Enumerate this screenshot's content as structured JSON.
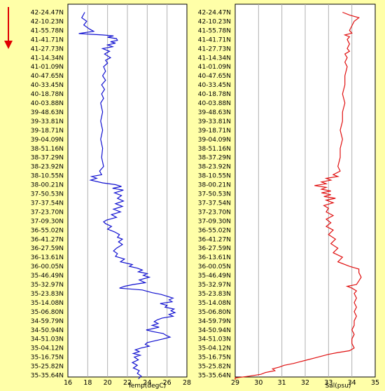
{
  "chart_data": [
    {
      "type": "line",
      "xlabel": "Temp(degC)",
      "xticks": [
        16,
        18,
        20,
        22,
        24,
        26,
        28
      ],
      "xlim": [
        16,
        28
      ],
      "latitudes": [
        "42-24.47N",
        "42-10.23N",
        "41-55.78N",
        "41-41.71N",
        "41-27.73N",
        "41-14.34N",
        "41-01.09N",
        "40-47.65N",
        "40-33.45N",
        "40-18.78N",
        "40-03.88N",
        "39-48.63N",
        "39-33.81N",
        "39-18.71N",
        "39-04.09N",
        "38-51.16N",
        "38-37.29N",
        "38-23.92N",
        "38-10.55N",
        "38-00.21N",
        "37-50.53N",
        "37-37.54N",
        "37-23.70N",
        "37-09.30N",
        "36-55.02N",
        "36-41.27N",
        "36-27.59N",
        "36-13.61N",
        "36-00.05N",
        "35-46.49N",
        "35-32.97N",
        "35-23.83N",
        "35-14.08N",
        "35-06.80N",
        "34-59.79N",
        "34-50.94N",
        "34-51.03N",
        "35-04.12N",
        "35-16.75N",
        "35-25.82N",
        "35-35.64N"
      ],
      "profile": [
        {
          "i": 0,
          "v": 17.7
        },
        {
          "i": 0.6,
          "v": 17.4
        },
        {
          "i": 1.0,
          "v": 17.9
        },
        {
          "i": 1.4,
          "v": 17.6
        },
        {
          "i": 1.8,
          "v": 18.1
        },
        {
          "i": 2.1,
          "v": 18.6
        },
        {
          "i": 2.35,
          "v": 17.1
        },
        {
          "i": 2.5,
          "v": 19.5
        },
        {
          "i": 2.6,
          "v": 20.6
        },
        {
          "i": 2.75,
          "v": 20.0
        },
        {
          "i": 2.9,
          "v": 20.9
        },
        {
          "i": 3.1,
          "v": 21.0
        },
        {
          "i": 3.25,
          "v": 20.3
        },
        {
          "i": 3.4,
          "v": 20.8
        },
        {
          "i": 3.6,
          "v": 20.0
        },
        {
          "i": 3.8,
          "v": 20.5
        },
        {
          "i": 4.0,
          "v": 19.5
        },
        {
          "i": 4.3,
          "v": 20.2
        },
        {
          "i": 4.6,
          "v": 19.7
        },
        {
          "i": 5.0,
          "v": 20.3
        },
        {
          "i": 5.3,
          "v": 19.8
        },
        {
          "i": 5.6,
          "v": 20.0
        },
        {
          "i": 6.0,
          "v": 19.6
        },
        {
          "i": 6.5,
          "v": 19.8
        },
        {
          "i": 7.0,
          "v": 19.5
        },
        {
          "i": 7.5,
          "v": 19.8
        },
        {
          "i": 8.0,
          "v": 19.4
        },
        {
          "i": 8.5,
          "v": 19.7
        },
        {
          "i": 9.0,
          "v": 19.4
        },
        {
          "i": 9.5,
          "v": 19.6
        },
        {
          "i": 10.0,
          "v": 19.3
        },
        {
          "i": 11.0,
          "v": 19.5
        },
        {
          "i": 12.0,
          "v": 19.3
        },
        {
          "i": 13.0,
          "v": 19.5
        },
        {
          "i": 14.0,
          "v": 19.3
        },
        {
          "i": 15.0,
          "v": 19.5
        },
        {
          "i": 16.0,
          "v": 19.4
        },
        {
          "i": 17.0,
          "v": 19.6
        },
        {
          "i": 17.5,
          "v": 19.2
        },
        {
          "i": 17.9,
          "v": 19.4
        },
        {
          "i": 18.1,
          "v": 18.4
        },
        {
          "i": 18.3,
          "v": 18.9
        },
        {
          "i": 18.5,
          "v": 18.3
        },
        {
          "i": 18.8,
          "v": 19.5
        },
        {
          "i": 19.0,
          "v": 20.8
        },
        {
          "i": 19.2,
          "v": 21.4
        },
        {
          "i": 19.4,
          "v": 20.5
        },
        {
          "i": 19.6,
          "v": 21.6
        },
        {
          "i": 19.9,
          "v": 20.7
        },
        {
          "i": 20.2,
          "v": 21.4
        },
        {
          "i": 20.5,
          "v": 21.0
        },
        {
          "i": 20.8,
          "v": 21.6
        },
        {
          "i": 21.1,
          "v": 20.8
        },
        {
          "i": 21.4,
          "v": 21.5
        },
        {
          "i": 21.7,
          "v": 20.6
        },
        {
          "i": 22.0,
          "v": 21.3
        },
        {
          "i": 22.3,
          "v": 20.4
        },
        {
          "i": 22.6,
          "v": 20.9
        },
        {
          "i": 22.9,
          "v": 19.9
        },
        {
          "i": 23.1,
          "v": 19.6
        },
        {
          "i": 23.3,
          "v": 19.8
        },
        {
          "i": 23.6,
          "v": 20.4
        },
        {
          "i": 23.9,
          "v": 20.0
        },
        {
          "i": 24.2,
          "v": 20.7
        },
        {
          "i": 24.5,
          "v": 21.2
        },
        {
          "i": 24.8,
          "v": 21.0
        },
        {
          "i": 25.0,
          "v": 21.5
        },
        {
          "i": 25.3,
          "v": 21.1
        },
        {
          "i": 25.6,
          "v": 21.5
        },
        {
          "i": 26.0,
          "v": 20.9
        },
        {
          "i": 26.3,
          "v": 20.6
        },
        {
          "i": 26.6,
          "v": 21.0
        },
        {
          "i": 26.9,
          "v": 20.8
        },
        {
          "i": 27.2,
          "v": 21.7
        },
        {
          "i": 27.5,
          "v": 21.3
        },
        {
          "i": 27.8,
          "v": 22.5
        },
        {
          "i": 28.0,
          "v": 22.2
        },
        {
          "i": 28.2,
          "v": 23.0
        },
        {
          "i": 28.4,
          "v": 23.5
        },
        {
          "i": 28.6,
          "v": 23.1
        },
        {
          "i": 28.8,
          "v": 24.0
        },
        {
          "i": 29.0,
          "v": 23.6
        },
        {
          "i": 29.2,
          "v": 24.2
        },
        {
          "i": 29.5,
          "v": 23.2
        },
        {
          "i": 29.8,
          "v": 23.8
        },
        {
          "i": 30.0,
          "v": 22.6
        },
        {
          "i": 30.2,
          "v": 21.7
        },
        {
          "i": 30.4,
          "v": 21.2
        },
        {
          "i": 30.6,
          "v": 23.5
        },
        {
          "i": 30.9,
          "v": 24.5
        },
        {
          "i": 31.1,
          "v": 25.4
        },
        {
          "i": 31.3,
          "v": 26.0
        },
        {
          "i": 31.5,
          "v": 26.6
        },
        {
          "i": 31.7,
          "v": 26.2
        },
        {
          "i": 31.9,
          "v": 26.5
        },
        {
          "i": 32.1,
          "v": 25.3
        },
        {
          "i": 32.3,
          "v": 26.0
        },
        {
          "i": 32.5,
          "v": 25.8
        },
        {
          "i": 32.7,
          "v": 26.7
        },
        {
          "i": 32.9,
          "v": 26.4
        },
        {
          "i": 33.1,
          "v": 26.8
        },
        {
          "i": 33.3,
          "v": 26.2
        },
        {
          "i": 33.5,
          "v": 26.6
        },
        {
          "i": 33.7,
          "v": 25.5
        },
        {
          "i": 33.9,
          "v": 25.0
        },
        {
          "i": 34.1,
          "v": 24.7
        },
        {
          "i": 34.3,
          "v": 25.1
        },
        {
          "i": 34.5,
          "v": 24.5
        },
        {
          "i": 34.7,
          "v": 25.2
        },
        {
          "i": 34.9,
          "v": 24.4
        },
        {
          "i": 35.0,
          "v": 23.9
        },
        {
          "i": 35.2,
          "v": 24.6
        },
        {
          "i": 35.4,
          "v": 25.6
        },
        {
          "i": 35.6,
          "v": 25.9
        },
        {
          "i": 35.8,
          "v": 26.3
        },
        {
          "i": 36.0,
          "v": 25.6
        },
        {
          "i": 36.2,
          "v": 24.8
        },
        {
          "i": 36.4,
          "v": 24.0
        },
        {
          "i": 36.6,
          "v": 23.8
        },
        {
          "i": 36.8,
          "v": 24.2
        },
        {
          "i": 37.0,
          "v": 23.4
        },
        {
          "i": 37.2,
          "v": 22.8
        },
        {
          "i": 37.4,
          "v": 23.2
        },
        {
          "i": 37.6,
          "v": 22.6
        },
        {
          "i": 37.8,
          "v": 23.3
        },
        {
          "i": 38.0,
          "v": 22.7
        },
        {
          "i": 38.3,
          "v": 23.1
        },
        {
          "i": 38.6,
          "v": 22.5
        },
        {
          "i": 38.9,
          "v": 23.0
        },
        {
          "i": 39.2,
          "v": 22.6
        },
        {
          "i": 39.5,
          "v": 23.2
        },
        {
          "i": 39.8,
          "v": 23.0
        },
        {
          "i": 40.1,
          "v": 23.4
        },
        {
          "i": 40.4,
          "v": 23.1
        }
      ],
      "color": "#1010d0"
    },
    {
      "type": "line",
      "xlabel": "Sal(psu)",
      "xticks": [
        29,
        30,
        31,
        32,
        33,
        34,
        35
      ],
      "xlim": [
        29,
        35
      ],
      "latitudes": [
        "42-24.47N",
        "42-10.23N",
        "41-55.78N",
        "41-41.71N",
        "41-27.73N",
        "41-14.34N",
        "41-01.09N",
        "40-47.65N",
        "40-33.45N",
        "40-18.78N",
        "40-03.88N",
        "39-48.63N",
        "39-33.81N",
        "39-18.71N",
        "39-04.09N",
        "38-51.16N",
        "38-37.29N",
        "38-23.92N",
        "38-10.55N",
        "38-00.21N",
        "37-50.53N",
        "37-37.54N",
        "37-23.70N",
        "37-09.30N",
        "36-55.02N",
        "36-41.27N",
        "36-27.59N",
        "36-13.61N",
        "36-00.05N",
        "35-46.49N",
        "35-32.97N",
        "35-23.83N",
        "35-14.08N",
        "35-06.80N",
        "34-59.79N",
        "34-50.94N",
        "34-51.03N",
        "35-04.12N",
        "35-16.75N",
        "35-25.82N",
        "35-35.64N"
      ],
      "profile": [
        {
          "i": 0,
          "v": 33.6
        },
        {
          "i": 0.3,
          "v": 33.9
        },
        {
          "i": 0.6,
          "v": 34.3
        },
        {
          "i": 1.0,
          "v": 34.1
        },
        {
          "i": 1.5,
          "v": 34.0
        },
        {
          "i": 2.0,
          "v": 33.9
        },
        {
          "i": 2.3,
          "v": 34.0
        },
        {
          "i": 2.5,
          "v": 33.7
        },
        {
          "i": 2.7,
          "v": 33.9
        },
        {
          "i": 3.0,
          "v": 33.8
        },
        {
          "i": 3.5,
          "v": 33.9
        },
        {
          "i": 4.0,
          "v": 33.8
        },
        {
          "i": 4.3,
          "v": 33.9
        },
        {
          "i": 4.6,
          "v": 33.7
        },
        {
          "i": 5.0,
          "v": 33.8
        },
        {
          "i": 5.5,
          "v": 33.7
        },
        {
          "i": 6.0,
          "v": 33.8
        },
        {
          "i": 7.0,
          "v": 33.7
        },
        {
          "i": 8.0,
          "v": 33.7
        },
        {
          "i": 9.0,
          "v": 33.6
        },
        {
          "i": 10.0,
          "v": 33.7
        },
        {
          "i": 11.0,
          "v": 33.6
        },
        {
          "i": 12.0,
          "v": 33.6
        },
        {
          "i": 13.0,
          "v": 33.5
        },
        {
          "i": 14.0,
          "v": 33.6
        },
        {
          "i": 15.0,
          "v": 33.5
        },
        {
          "i": 16.0,
          "v": 33.5
        },
        {
          "i": 17.0,
          "v": 33.4
        },
        {
          "i": 17.5,
          "v": 33.5
        },
        {
          "i": 17.9,
          "v": 33.2
        },
        {
          "i": 18.1,
          "v": 33.4
        },
        {
          "i": 18.3,
          "v": 32.9
        },
        {
          "i": 18.5,
          "v": 33.1
        },
        {
          "i": 18.7,
          "v": 32.7
        },
        {
          "i": 18.9,
          "v": 32.9
        },
        {
          "i": 19.1,
          "v": 32.4
        },
        {
          "i": 19.3,
          "v": 32.9
        },
        {
          "i": 19.5,
          "v": 32.7
        },
        {
          "i": 19.7,
          "v": 33.1
        },
        {
          "i": 19.9,
          "v": 32.7
        },
        {
          "i": 20.1,
          "v": 33.1
        },
        {
          "i": 20.3,
          "v": 32.8
        },
        {
          "i": 20.5,
          "v": 33.3
        },
        {
          "i": 20.7,
          "v": 32.9
        },
        {
          "i": 21.0,
          "v": 33.2
        },
        {
          "i": 21.3,
          "v": 32.8
        },
        {
          "i": 21.6,
          "v": 33.0
        },
        {
          "i": 22.0,
          "v": 32.9
        },
        {
          "i": 22.4,
          "v": 33.2
        },
        {
          "i": 22.8,
          "v": 32.9
        },
        {
          "i": 23.2,
          "v": 33.1
        },
        {
          "i": 23.6,
          "v": 32.9
        },
        {
          "i": 24.0,
          "v": 33.2
        },
        {
          "i": 24.5,
          "v": 33.0
        },
        {
          "i": 25.0,
          "v": 33.3
        },
        {
          "i": 25.5,
          "v": 33.1
        },
        {
          "i": 26.0,
          "v": 33.4
        },
        {
          "i": 26.5,
          "v": 33.2
        },
        {
          "i": 27.0,
          "v": 33.6
        },
        {
          "i": 27.5,
          "v": 33.4
        },
        {
          "i": 28.0,
          "v": 33.9
        },
        {
          "i": 28.3,
          "v": 34.3
        },
        {
          "i": 28.7,
          "v": 34.3
        },
        {
          "i": 29.2,
          "v": 34.4
        },
        {
          "i": 29.6,
          "v": 34.3
        },
        {
          "i": 30.0,
          "v": 34.2
        },
        {
          "i": 30.2,
          "v": 33.8
        },
        {
          "i": 30.4,
          "v": 34.0
        },
        {
          "i": 30.7,
          "v": 34.2
        },
        {
          "i": 31.0,
          "v": 34.1
        },
        {
          "i": 31.5,
          "v": 34.2
        },
        {
          "i": 32.0,
          "v": 34.1
        },
        {
          "i": 32.5,
          "v": 34.2
        },
        {
          "i": 33.0,
          "v": 34.1
        },
        {
          "i": 33.5,
          "v": 34.2
        },
        {
          "i": 34.0,
          "v": 34.1
        },
        {
          "i": 34.5,
          "v": 34.1
        },
        {
          "i": 35.0,
          "v": 34.0
        },
        {
          "i": 35.5,
          "v": 34.1
        },
        {
          "i": 36.0,
          "v": 34.0
        },
        {
          "i": 36.5,
          "v": 34.0
        },
        {
          "i": 37.0,
          "v": 34.1
        },
        {
          "i": 37.3,
          "v": 33.9
        },
        {
          "i": 37.5,
          "v": 33.4
        },
        {
          "i": 37.7,
          "v": 33.0
        },
        {
          "i": 37.9,
          "v": 32.7
        },
        {
          "i": 38.1,
          "v": 32.4
        },
        {
          "i": 38.3,
          "v": 32.1
        },
        {
          "i": 38.5,
          "v": 31.8
        },
        {
          "i": 38.7,
          "v": 31.5
        },
        {
          "i": 38.9,
          "v": 31.1
        },
        {
          "i": 39.1,
          "v": 30.9
        },
        {
          "i": 39.3,
          "v": 30.6
        },
        {
          "i": 39.5,
          "v": 30.7
        },
        {
          "i": 39.7,
          "v": 30.3
        },
        {
          "i": 39.9,
          "v": 30.1
        },
        {
          "i": 40.1,
          "v": 29.6
        },
        {
          "i": 40.3,
          "v": 29.0
        },
        {
          "i": 40.5,
          "v": 29.0
        }
      ],
      "color": "#e01010"
    }
  ]
}
